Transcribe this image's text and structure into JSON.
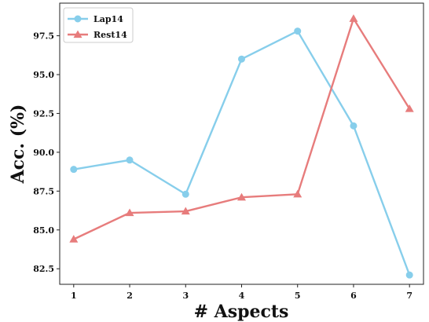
{
  "chart_data": {
    "type": "line",
    "xlabel": "# Aspects",
    "ylabel": "Acc. (%)",
    "x": [
      1,
      2,
      3,
      4,
      5,
      6,
      7
    ],
    "x_tick_labels": [
      "1",
      "2",
      "3",
      "4",
      "5",
      "6",
      "7"
    ],
    "xlim": [
      0.75,
      7.25
    ],
    "ylim": [
      81.5,
      99.6
    ],
    "y_ticks": [
      82.5,
      85.0,
      87.5,
      90.0,
      92.5,
      95.0,
      97.5
    ],
    "y_tick_labels": [
      "82.5",
      "85.0",
      "87.5",
      "90.0",
      "92.5",
      "95.0",
      "97.5"
    ],
    "grid": false,
    "legend_position": "top-left",
    "series": [
      {
        "name": "Lap14",
        "color": "#87CEEB",
        "marker": "circle",
        "values": [
          88.9,
          89.5,
          87.3,
          96.0,
          97.8,
          91.7,
          82.1
        ]
      },
      {
        "name": "Rest14",
        "color": "#E77C7C",
        "marker": "triangle",
        "values": [
          84.4,
          86.1,
          86.2,
          87.1,
          87.3,
          98.6,
          92.8
        ]
      }
    ]
  }
}
